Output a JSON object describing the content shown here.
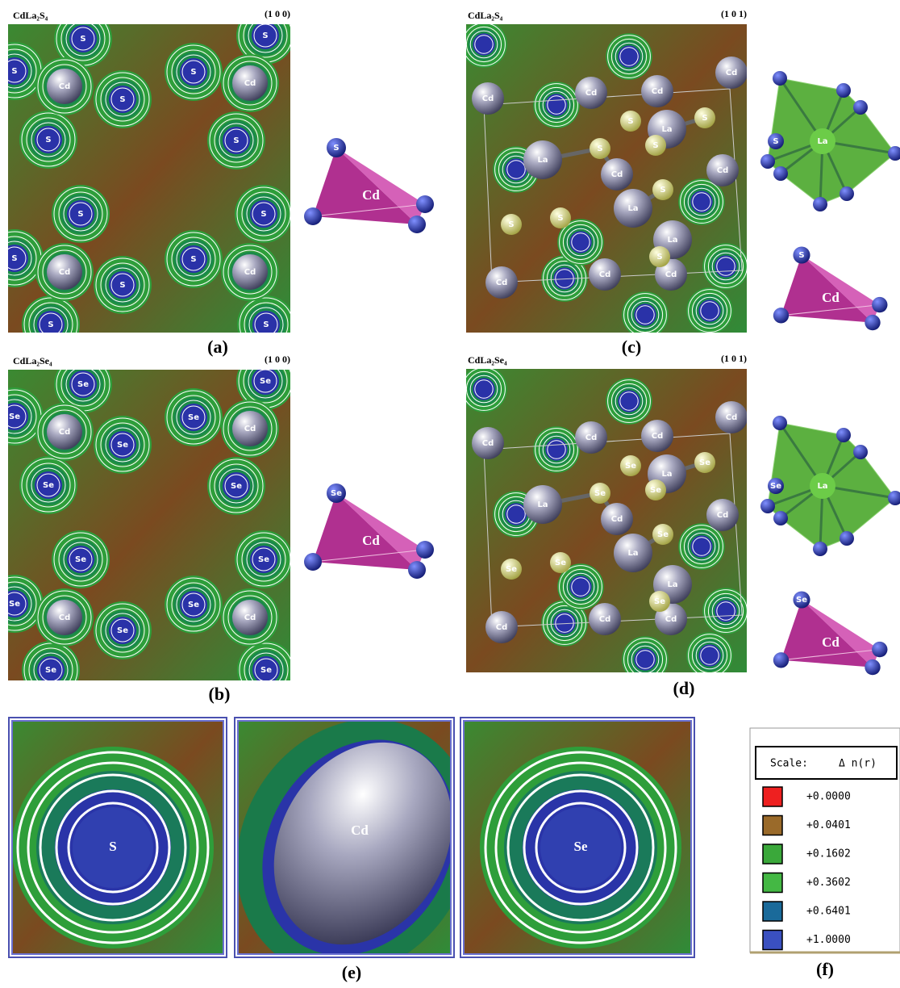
{
  "panels": [
    {
      "formula": "CdLa₂S₄",
      "plane": "(1 0 0)",
      "caption": "(a)",
      "atoms": [
        "S",
        "S",
        "S",
        "S",
        "S",
        "S",
        "S",
        "S",
        "S",
        "S",
        "S",
        "S",
        "S",
        "S",
        "Cd",
        "Cd",
        "Cd",
        "Cd"
      ],
      "tetra": {
        "anion": "S",
        "cation": "Cd"
      }
    },
    {
      "formula": "CdLa₂Se₄",
      "plane": "(1 0 0)",
      "caption": "(b)",
      "atoms": [
        "Se",
        "Se",
        "Se",
        "Se",
        "Se",
        "Se",
        "Se",
        "Se",
        "Se",
        "Se",
        "Se",
        "Se",
        "Se",
        "Se",
        "Cd",
        "Cd",
        "Cd",
        "Cd"
      ],
      "tetra": {
        "anion": "Se",
        "cation": "Cd"
      }
    },
    {
      "formula": "CdLa₂S₄",
      "plane": "(1 0 1)",
      "caption": "(c)",
      "atoms": [
        "Cd",
        "Cd",
        "Cd",
        "Cd",
        "Cd",
        "Cd",
        "Cd",
        "Cd",
        "Cd",
        "La",
        "La",
        "La",
        "La",
        "S",
        "S",
        "S",
        "S",
        "S",
        "S",
        "S",
        "S"
      ],
      "polyhedron": {
        "anion": "S",
        "cation": "La"
      },
      "tetra": {
        "anion": "S",
        "cation": "Cd"
      }
    },
    {
      "formula": "CdLa₂Se₄",
      "plane": "(1 0 1)",
      "caption": "(d)",
      "atoms": [
        "Cd",
        "Cd",
        "Cd",
        "Cd",
        "Cd",
        "Cd",
        "Cd",
        "Cd",
        "Cd",
        "La",
        "La",
        "La",
        "La",
        "Se",
        "Se",
        "Se",
        "Se",
        "Se",
        "Se",
        "Se",
        "Se"
      ],
      "polyhedron": {
        "anion": "Se",
        "cation": "La"
      },
      "tetra": {
        "anion": "Se",
        "cation": "Cd"
      }
    }
  ],
  "zoom": {
    "caption": "(e)",
    "labels": [
      "S",
      "Cd",
      "Se"
    ]
  },
  "legend": {
    "caption": "(f)",
    "title": "Scale:",
    "quantity": "Δ n(r)",
    "entries": [
      {
        "color": "#ee2020",
        "label": "+0.0000"
      },
      {
        "color": "#9a6a2a",
        "label": "+0.0401"
      },
      {
        "color": "#3aa83a",
        "label": "+0.1602"
      },
      {
        "color": "#44b844",
        "label": "+0.3602"
      },
      {
        "color": "#1a6a9a",
        "label": "+0.6401"
      },
      {
        "color": "#3a50c0",
        "label": "+1.0000"
      }
    ]
  }
}
